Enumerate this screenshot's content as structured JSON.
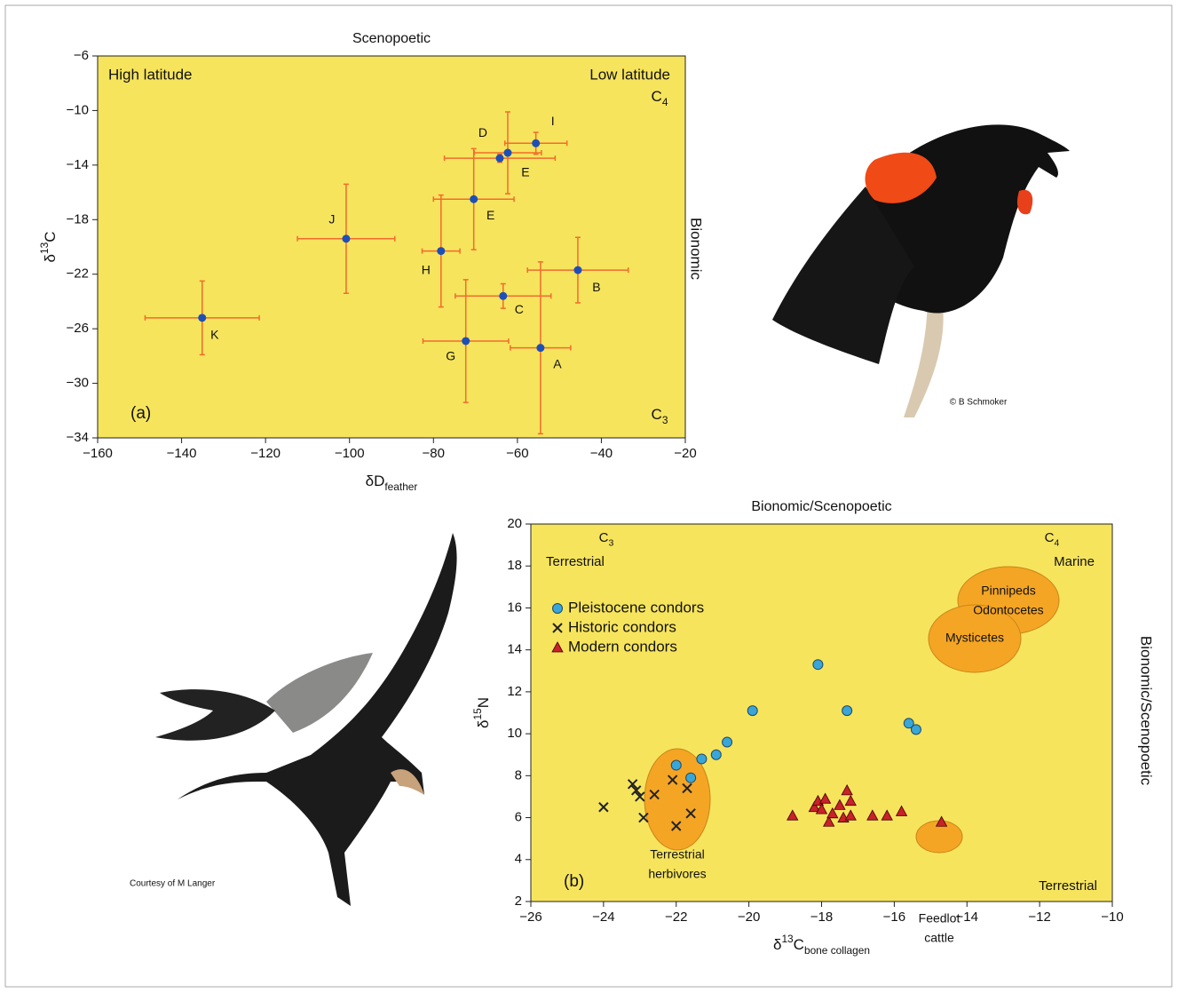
{
  "chart_data": [
    {
      "type": "scatter",
      "panel_label": "(a)",
      "title": "Scenopoetic",
      "xlabel": {
        "text": "δD",
        "sub": "feather"
      },
      "ylabel": {
        "pre": "δ",
        "sup": "13",
        "text": "C"
      },
      "xlim": [
        -160,
        -20
      ],
      "xticks": [
        {
          "value": -160,
          "label": "−160"
        },
        {
          "value": -140,
          "label": "−140"
        },
        {
          "value": -120,
          "label": "−120"
        },
        {
          "value": -100,
          "label": "−100"
        },
        {
          "value": -80,
          "label": "−80"
        },
        {
          "value": -60,
          "label": "−60"
        },
        {
          "value": -40,
          "label": "−40"
        },
        {
          "value": -20,
          "label": "−20"
        }
      ],
      "ylim": [
        -34,
        -6
      ],
      "yticks": [
        {
          "value": -34,
          "label": "−34"
        },
        {
          "value": -30,
          "label": "−30"
        },
        {
          "value": -26,
          "label": "−26"
        },
        {
          "value": -22,
          "label": "−22"
        },
        {
          "value": -18,
          "label": "−18"
        },
        {
          "value": -14,
          "label": "−14"
        },
        {
          "value": -10,
          "label": "−10"
        },
        {
          "value": -6,
          "label": "−6"
        }
      ],
      "background": "#f6e45d",
      "series": [
        {
          "color": "#1d4fb8",
          "error_color": "#f26b2c",
          "labels": [
            "K",
            "J",
            "H",
            "E",
            "D",
            "E",
            "I",
            "B",
            "C",
            "G",
            "A"
          ],
          "x": [
            -135.1,
            -100.8,
            -78.2,
            -70.4,
            -64.2,
            -62.3,
            -55.6,
            -45.6,
            -63.4,
            -72.3,
            -54.5
          ],
          "values": [
            -25.2,
            -19.4,
            -20.3,
            -16.5,
            -13.5,
            -13.1,
            -12.4,
            -21.7,
            -23.6,
            -26.9,
            -27.4
          ],
          "xerr": [
            13.6,
            11.6,
            4.5,
            9.6,
            13.2,
            8,
            7.4,
            12,
            11.4,
            10.2,
            7.2
          ],
          "yerr": [
            2.7,
            4,
            4.1,
            3.7,
            0.3,
            3,
            0.8,
            2.4,
            0.9,
            4.5,
            6.3
          ]
        }
      ],
      "annotations": {
        "left_gradient": "High latitude",
        "right_gradient": "Low latitude",
        "top_axis": {
          "text": "C",
          "sub": "4"
        },
        "bottom_axis": {
          "text": "C",
          "sub": "3"
        },
        "side": "Bionomic"
      }
    },
    {
      "type": "scatter",
      "panel_label": "(b)",
      "title": "Bionomic/Scenopoetic",
      "side": "Bionomic/Scenopoetic",
      "xlabel": {
        "pre": "δ",
        "sup": "13",
        "text": "C",
        "sub": "bone collagen"
      },
      "ylabel": {
        "pre": "δ",
        "sup": "15",
        "text": "N"
      },
      "xlim": [
        -26,
        -10
      ],
      "xticks": [
        {
          "value": -26,
          "label": "−26"
        },
        {
          "value": -24,
          "label": "−24"
        },
        {
          "value": -22,
          "label": "−22"
        },
        {
          "value": -20,
          "label": "−20"
        },
        {
          "value": -18,
          "label": "−18"
        },
        {
          "value": -16,
          "label": "−16"
        },
        {
          "value": -14,
          "label": "−14"
        },
        {
          "value": -12,
          "label": "−12"
        },
        {
          "value": -10,
          "label": "−10"
        }
      ],
      "ylim": [
        2,
        20
      ],
      "yticks": [
        2,
        4,
        6,
        8,
        10,
        12,
        14,
        16,
        18,
        20
      ],
      "background": "#f6e45d",
      "legend": "upper left",
      "series": [
        {
          "name": "Pleistocene condors",
          "color": "#3aa6d8",
          "marker": "circle",
          "x": [
            -18.1,
            -19.9,
            -17.3,
            -15.6,
            -15.4,
            -20.6,
            -20.9,
            -21.3,
            -22.0,
            -21.6
          ],
          "values": [
            13.3,
            11.1,
            11.1,
            10.5,
            10.2,
            9.6,
            9.0,
            8.8,
            8.5,
            7.9
          ]
        },
        {
          "name": "Historic condors",
          "color": "#222222",
          "marker": "x",
          "x": [
            -24.0,
            -23.2,
            -23.1,
            -23.0,
            -22.9,
            -22.6,
            -22.1,
            -22.0,
            -21.7,
            -21.6
          ],
          "values": [
            6.5,
            7.6,
            7.3,
            7.0,
            6.0,
            7.1,
            7.8,
            5.6,
            7.4,
            6.2
          ]
        },
        {
          "name": "Modern condors",
          "color": "#c8222a",
          "marker": "triangle",
          "x": [
            -18.8,
            -18.2,
            -18.1,
            -18.0,
            -17.9,
            -17.8,
            -17.7,
            -17.5,
            -17.4,
            -17.3,
            -17.2,
            -17.2,
            -16.6,
            -16.2,
            -15.8,
            -14.7
          ],
          "values": [
            6.1,
            6.5,
            6.8,
            6.4,
            6.9,
            5.8,
            6.2,
            6.6,
            6.0,
            7.3,
            6.8,
            6.1,
            6.1,
            6.1,
            6.3,
            5.8
          ]
        }
      ],
      "annotations": {
        "c3": {
          "text": "C",
          "sub": "3"
        },
        "c4": {
          "text": "C",
          "sub": "4"
        },
        "terrestrial": "Terrestrial",
        "marine": "Marine",
        "terrestrial_bottom": "Terrestrial"
      },
      "region_color": "#f5a524",
      "regions": [
        {
          "lines": [
            "Terrestrial",
            "herbivores"
          ]
        },
        {
          "lines": [
            "Pinnipeds",
            "Odontocetes"
          ]
        },
        {
          "lines": [
            "Mysticetes"
          ]
        },
        {
          "lines": [
            "Feedlot",
            "cattle"
          ]
        }
      ]
    }
  ],
  "photos": [
    {
      "credit": "© B Schmoker"
    },
    {
      "credit": "Courtesy of M Langer"
    }
  ]
}
